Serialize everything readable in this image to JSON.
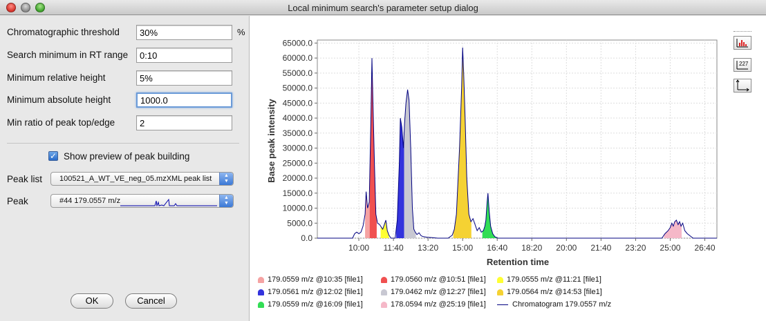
{
  "window": {
    "title": "Local minimum search's parameter setup dialog"
  },
  "params": [
    {
      "label": "Chromatographic threshold",
      "value": "30%",
      "unit": "%"
    },
    {
      "label": "Search minimum in RT range",
      "value": "0:10",
      "unit": ""
    },
    {
      "label": "Minimum relative height",
      "value": "5%",
      "unit": ""
    },
    {
      "label": "Minimum absolute height",
      "value": "1000.0",
      "unit": ""
    },
    {
      "label": "Min ratio of peak top/edge",
      "value": "2",
      "unit": ""
    }
  ],
  "preview": {
    "label": "Show preview of peak building",
    "checked": true
  },
  "peak_list": {
    "label": "Peak list",
    "value": "100521_A_WT_VE_neg_05.mzXML peak list"
  },
  "peak": {
    "label": "Peak",
    "value": "#44 179.0557 m/z"
  },
  "buttons": {
    "ok": "OK",
    "cancel": "Cancel"
  },
  "toolbar": {
    "icons": [
      "peak-view-icon",
      "label-toggle-icon",
      "axes-icon"
    ],
    "label_icon_text": "227"
  },
  "chart_data": {
    "type": "area",
    "title": "",
    "xlabel": "Retention time",
    "ylabel": "Base peak intensity",
    "xticks": [
      "10:00",
      "11:40",
      "13:20",
      "15:00",
      "16:40",
      "18:20",
      "20:00",
      "21:40",
      "23:20",
      "25:00",
      "26:40"
    ],
    "yticks": [
      "0.0",
      "5000.0",
      "10000.0",
      "15000.0",
      "20000.0",
      "25000.0",
      "30000.0",
      "35000.0",
      "40000.0",
      "45000.0",
      "50000.0",
      "55000.0",
      "60000.0",
      "65000.0"
    ],
    "xlim_minutes": [
      8.0,
      27.25
    ],
    "ylim": [
      0,
      66000
    ],
    "grid": true,
    "legend_position": "bottom",
    "chromatogram": {
      "name": "Chromatogram 179.0557 m/z",
      "color": "#000080",
      "points": [
        [
          8,
          0
        ],
        [
          9.7,
          0
        ],
        [
          9.8,
          1500
        ],
        [
          9.9,
          2000
        ],
        [
          10.0,
          1500
        ],
        [
          10.1,
          2000
        ],
        [
          10.2,
          4000
        ],
        [
          10.3,
          8000
        ],
        [
          10.35,
          15500
        ],
        [
          10.42,
          10000
        ],
        [
          10.5,
          12000
        ],
        [
          10.58,
          40000
        ],
        [
          10.63,
          60000
        ],
        [
          10.68,
          45000
        ],
        [
          10.75,
          25000
        ],
        [
          10.82,
          8000
        ],
        [
          10.9,
          5000
        ],
        [
          11.0,
          4500
        ],
        [
          11.15,
          3000
        ],
        [
          11.3,
          6000
        ],
        [
          11.37,
          2500
        ],
        [
          11.45,
          1000
        ],
        [
          11.55,
          0
        ],
        [
          11.75,
          0
        ],
        [
          11.85,
          6000
        ],
        [
          11.95,
          25000
        ],
        [
          12.0,
          40000
        ],
        [
          12.07,
          37000
        ],
        [
          12.15,
          30000
        ],
        [
          12.2,
          38000
        ],
        [
          12.27,
          45000
        ],
        [
          12.35,
          49500
        ],
        [
          12.42,
          46000
        ],
        [
          12.5,
          30000
        ],
        [
          12.58,
          10000
        ],
        [
          12.65,
          3000
        ],
        [
          12.72,
          2000
        ],
        [
          12.8,
          1200
        ],
        [
          12.9,
          1800
        ],
        [
          13.0,
          800
        ],
        [
          13.1,
          500
        ],
        [
          13.3,
          300
        ],
        [
          13.5,
          200
        ],
        [
          13.8,
          0
        ],
        [
          14.3,
          0
        ],
        [
          14.5,
          1000
        ],
        [
          14.6,
          3000
        ],
        [
          14.7,
          8000
        ],
        [
          14.85,
          30000
        ],
        [
          14.95,
          50000
        ],
        [
          15.0,
          63500
        ],
        [
          15.05,
          55000
        ],
        [
          15.12,
          40000
        ],
        [
          15.2,
          20000
        ],
        [
          15.3,
          8000
        ],
        [
          15.4,
          5500
        ],
        [
          15.5,
          6500
        ],
        [
          15.6,
          4500
        ],
        [
          15.7,
          2500
        ],
        [
          15.8,
          3500
        ],
        [
          15.9,
          2000
        ],
        [
          16.0,
          2500
        ],
        [
          16.07,
          4000
        ],
        [
          16.12,
          6000
        ],
        [
          16.18,
          12000
        ],
        [
          16.22,
          15000
        ],
        [
          16.28,
          9000
        ],
        [
          16.35,
          4000
        ],
        [
          16.45,
          1500
        ],
        [
          16.55,
          500
        ],
        [
          16.7,
          0
        ],
        [
          24.6,
          0
        ],
        [
          24.75,
          1500
        ],
        [
          24.9,
          2500
        ],
        [
          25.0,
          3500
        ],
        [
          25.08,
          5000
        ],
        [
          25.15,
          4000
        ],
        [
          25.22,
          5500
        ],
        [
          25.3,
          6000
        ],
        [
          25.38,
          4500
        ],
        [
          25.45,
          5500
        ],
        [
          25.52,
          4000
        ],
        [
          25.6,
          5000
        ],
        [
          25.7,
          2500
        ],
        [
          25.82,
          1500
        ],
        [
          25.95,
          800
        ],
        [
          26.1,
          0
        ],
        [
          27.25,
          0
        ]
      ]
    },
    "peaks": [
      {
        "label": "179.0559 m/z @10:35 [file1]",
        "color": "#f5a3a3",
        "from": 10.3,
        "to": 10.52
      },
      {
        "label": "179.0560 m/z @10:51 [file1]",
        "color": "#f05050",
        "from": 10.52,
        "to": 10.86
      },
      {
        "label": "179.0555 m/z @11:21 [file1]",
        "color": "#ffff33",
        "from": 11.05,
        "to": 11.45
      },
      {
        "label": "179.0561 m/z @12:02 [file1]",
        "color": "#3333dd",
        "from": 11.8,
        "to": 12.18
      },
      {
        "label": "179.0462 m/z @12:27 [file1]",
        "color": "#c8c8d2",
        "from": 12.18,
        "to": 12.75
      },
      {
        "label": "179.0564 m/z @14:53 [file1]",
        "color": "#f5d233",
        "from": 14.55,
        "to": 15.42
      },
      {
        "label": "179.0559 m/z @16:09 [file1]",
        "color": "#33dd55",
        "from": 15.95,
        "to": 16.62
      },
      {
        "label": "178.0594 m/z @25:19 [file1]",
        "color": "#f5b8c8",
        "from": 24.7,
        "to": 25.55
      }
    ]
  }
}
